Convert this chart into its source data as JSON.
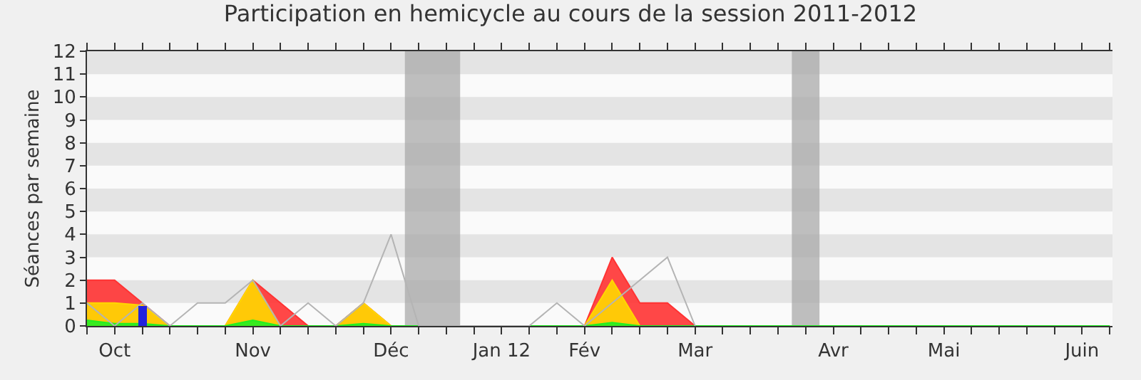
{
  "chart_data": {
    "type": "area",
    "title": "Participation en hemicycle au cours de la session 2011-2012",
    "ylabel": "Séances par semaine",
    "categories": [
      null,
      "Oct",
      null,
      null,
      null,
      null,
      "Nov",
      null,
      null,
      null,
      null,
      "Déc",
      null,
      null,
      null,
      "Jan 12",
      null,
      null,
      "Fév",
      null,
      null,
      null,
      "Mar",
      null,
      null,
      null,
      null,
      "Avr",
      null,
      null,
      null,
      "Mai",
      null,
      null,
      null,
      null,
      "Juin",
      null
    ],
    "series": [
      {
        "color": "#ff3333",
        "values": [
          2,
          2,
          1,
          0,
          0,
          0,
          2,
          1,
          0,
          0,
          1,
          0,
          0,
          0,
          0,
          0,
          0,
          0,
          0,
          3,
          1,
          1,
          0,
          0,
          0,
          0,
          0,
          0,
          0,
          0,
          0,
          0,
          0,
          0,
          0,
          0,
          0,
          0
        ]
      },
      {
        "color": "#ffd700",
        "values": [
          1,
          1,
          0.9,
          0,
          0,
          0,
          2,
          0,
          0,
          0,
          1,
          0,
          0,
          0,
          0,
          0,
          0,
          0,
          0,
          2,
          0,
          0,
          0,
          0,
          0,
          0,
          0,
          0,
          0,
          0,
          0,
          0,
          0,
          0,
          0,
          0,
          0,
          0
        ]
      },
      {
        "color": "#22ee22",
        "values": [
          0.25,
          0.1,
          0.1,
          0,
          0,
          0,
          0.25,
          0,
          0,
          0,
          0.1,
          0,
          0,
          0,
          0,
          0,
          0,
          0,
          0,
          0.15,
          0,
          0,
          0,
          0,
          0,
          0,
          0,
          0,
          0,
          0,
          0,
          0,
          0,
          0,
          0,
          0,
          0,
          0
        ]
      },
      {
        "type": "line",
        "color": "#b4b4b4",
        "values": [
          1,
          0,
          1,
          0,
          1,
          1,
          2,
          0,
          1,
          0,
          1,
          4,
          0,
          0,
          0,
          0,
          0,
          1,
          0,
          1,
          2,
          3,
          0,
          null,
          null,
          null,
          null,
          null,
          null,
          null,
          null,
          null,
          null,
          null,
          null,
          null,
          null,
          null
        ]
      },
      {
        "type": "bar",
        "color": "#2222dd",
        "values": [
          null,
          null,
          0.85,
          null,
          null,
          null,
          null,
          null,
          null,
          null,
          null,
          null,
          null,
          null,
          null,
          null,
          null,
          null,
          null,
          null,
          null,
          null,
          null,
          null,
          null,
          null,
          null,
          null,
          null,
          null,
          null,
          null,
          null,
          null,
          null,
          null,
          null,
          null
        ]
      }
    ],
    "ylim": [
      0,
      12
    ],
    "yticks": [
      0,
      1,
      2,
      3,
      4,
      5,
      6,
      7,
      8,
      9,
      10,
      11,
      12
    ],
    "bands": [
      {
        "axis": "y",
        "from": 1,
        "to": 2,
        "color": "#e4e4e4"
      },
      {
        "axis": "y",
        "from": 3,
        "to": 4,
        "color": "#e4e4e4"
      },
      {
        "axis": "y",
        "from": 5,
        "to": 6,
        "color": "#e4e4e4"
      },
      {
        "axis": "y",
        "from": 7,
        "to": 8,
        "color": "#e4e4e4"
      },
      {
        "axis": "y",
        "from": 9,
        "to": 10,
        "color": "#e4e4e4"
      },
      {
        "axis": "y",
        "from": 11,
        "to": 12,
        "color": "#e4e4e4"
      }
    ]
  }
}
